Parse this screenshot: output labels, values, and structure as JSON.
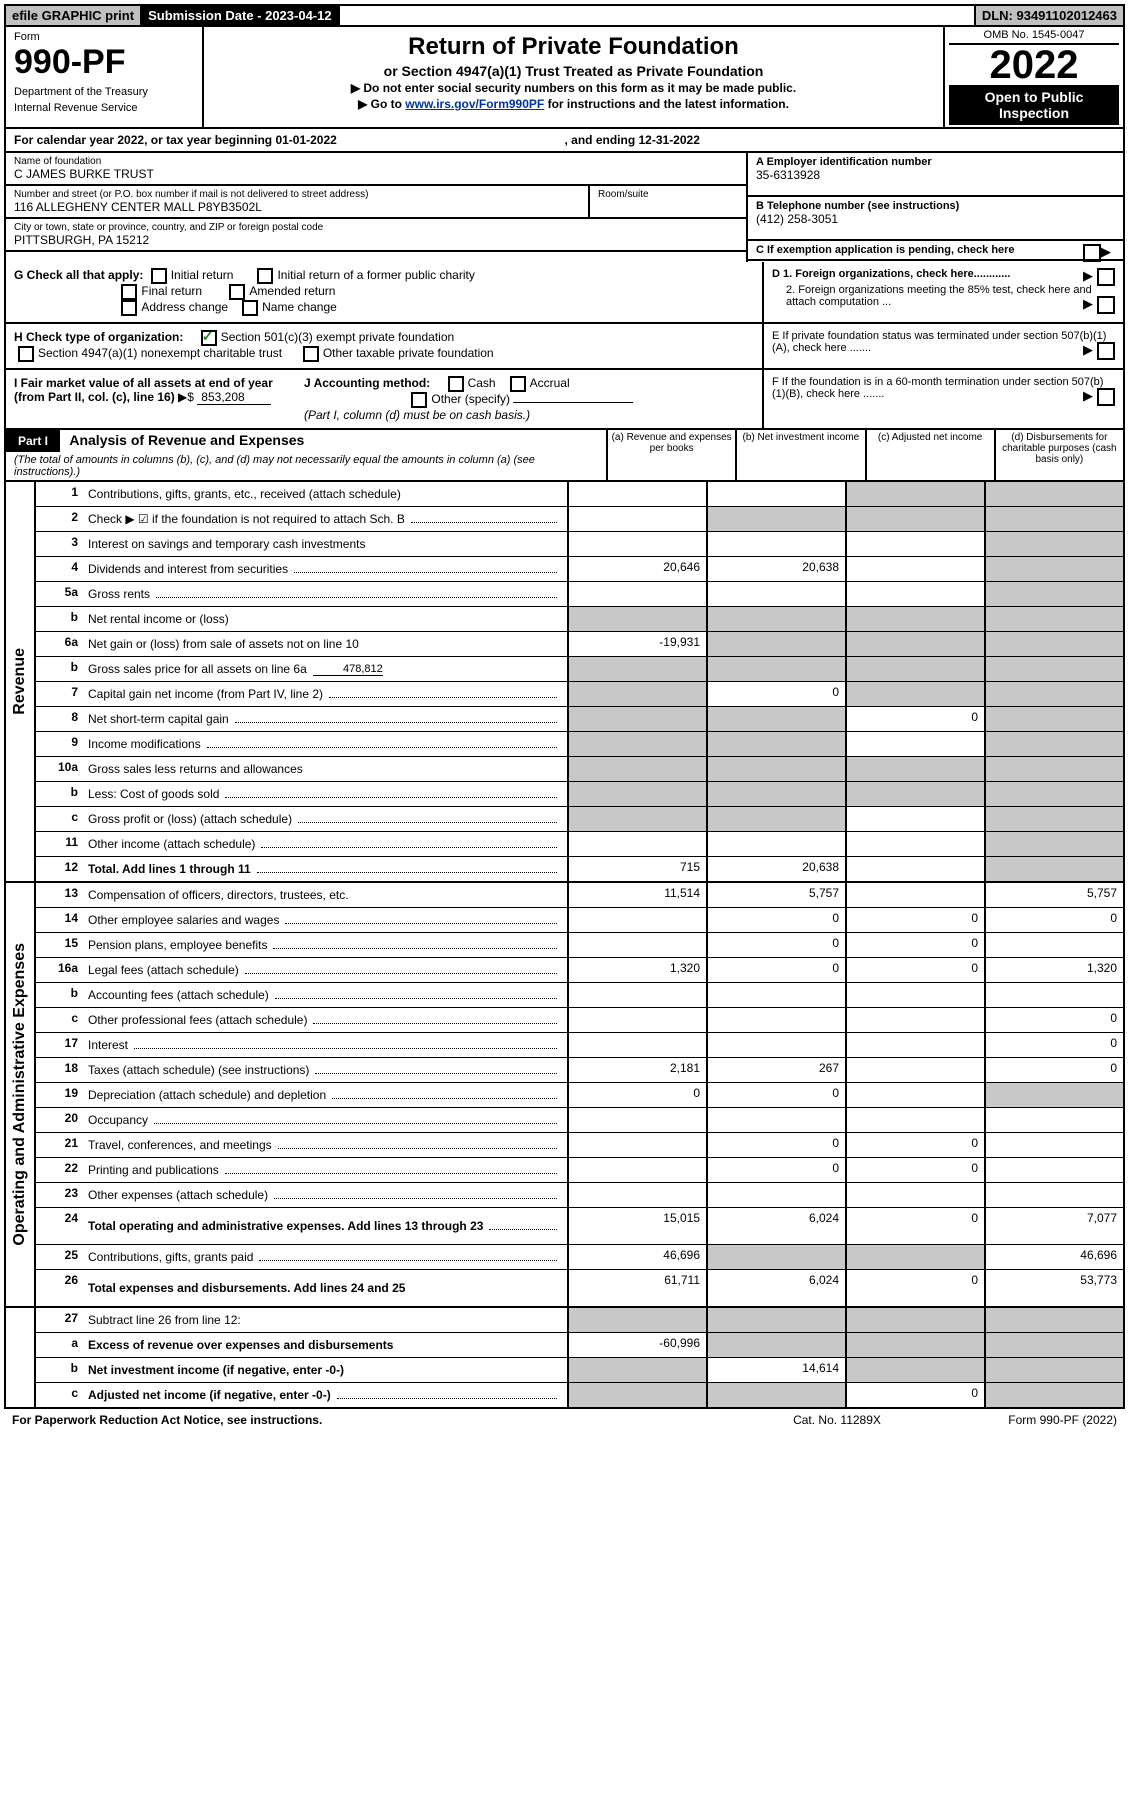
{
  "topbar": {
    "efile": "efile GRAPHIC print",
    "submission_label": "Submission Date - 2023-04-12",
    "dln": "DLN: 93491102012463"
  },
  "header": {
    "form_label": "Form",
    "form_number": "990-PF",
    "dept": "Department of the Treasury",
    "irs": "Internal Revenue Service",
    "title": "Return of Private Foundation",
    "subtitle": "or Section 4947(a)(1) Trust Treated as Private Foundation",
    "instr1": "▶ Do not enter social security numbers on this form as it may be made public.",
    "instr2_prefix": "▶ Go to ",
    "instr2_link": "www.irs.gov/Form990PF",
    "instr2_suffix": " for instructions and the latest information.",
    "omb": "OMB No. 1545-0047",
    "year": "2022",
    "open": "Open to Public Inspection"
  },
  "calendar": {
    "text": "For calendar year 2022, or tax year beginning 01-01-2022",
    "ending": ", and ending 12-31-2022"
  },
  "foundation": {
    "name_label": "Name of foundation",
    "name": "C JAMES BURKE TRUST",
    "addr_label": "Number and street (or P.O. box number if mail is not delivered to street address)",
    "addr": "116 ALLEGHENY CENTER MALL P8YB3502L",
    "room_label": "Room/suite",
    "city_label": "City or town, state or province, country, and ZIP or foreign postal code",
    "city": "PITTSBURGH, PA  15212"
  },
  "ein": {
    "label": "A Employer identification number",
    "value": "35-6313928"
  },
  "phone": {
    "label": "B Telephone number (see instructions)",
    "value": "(412) 258-3051"
  },
  "boxes": {
    "c": "C If exemption application is pending, check here",
    "d1": "D 1. Foreign organizations, check here............",
    "d2": "2. Foreign organizations meeting the 85% test, check here and attach computation ...",
    "e": "E  If private foundation status was terminated under section 507(b)(1)(A), check here .......",
    "f": "F  If the foundation is in a 60-month termination under section 507(b)(1)(B), check here ......."
  },
  "g": {
    "label": "G Check all that apply:",
    "opts": [
      "Initial return",
      "Initial return of a former public charity",
      "Final return",
      "Amended return",
      "Address change",
      "Name change"
    ]
  },
  "h": {
    "label": "H Check type of organization:",
    "opt1": "Section 501(c)(3) exempt private foundation",
    "opt2": "Section 4947(a)(1) nonexempt charitable trust",
    "opt3": "Other taxable private foundation"
  },
  "i": {
    "label": "I Fair market value of all assets at end of year (from Part II, col. (c), line 16)",
    "arrow": "▶$",
    "value": "853,208"
  },
  "j": {
    "label": "J Accounting method:",
    "opts": [
      "Cash",
      "Accrual",
      "Other (specify)"
    ],
    "note": "(Part I, column (d) must be on cash basis.)"
  },
  "part1": {
    "tag": "Part I",
    "title": "Analysis of Revenue and Expenses",
    "note": "(The total of amounts in columns (b), (c), and (d) may not necessarily equal the amounts in column (a) (see instructions).)",
    "cols": {
      "a": "(a)   Revenue and expenses per books",
      "b": "(b)   Net investment income",
      "c": "(c)   Adjusted net income",
      "d": "(d)   Disbursements for charitable purposes (cash basis only)"
    }
  },
  "side_labels": {
    "revenue": "Revenue",
    "operating": "Operating and Administrative Expenses"
  },
  "lines": [
    {
      "n": "1",
      "d": "Contributions, gifts, grants, etc., received (attach schedule)",
      "a": "",
      "b": "",
      "c": "sh",
      "dd": "sh"
    },
    {
      "n": "2",
      "d": "Check ▶ ☑ if the foundation is not required to attach Sch. B",
      "dots": true,
      "a": "",
      "b": "sh",
      "c": "sh",
      "dd": "sh"
    },
    {
      "n": "3",
      "d": "Interest on savings and temporary cash investments",
      "a": "",
      "b": "",
      "c": "",
      "dd": "sh"
    },
    {
      "n": "4",
      "d": "Dividends and interest from securities",
      "dots": true,
      "a": "20,646",
      "b": "20,638",
      "c": "",
      "dd": "sh"
    },
    {
      "n": "5a",
      "d": "Gross rents",
      "dots": true,
      "a": "",
      "b": "",
      "c": "",
      "dd": "sh"
    },
    {
      "n": "b",
      "d": "Net rental income or (loss)",
      "a": "sh",
      "b": "sh",
      "c": "sh",
      "dd": "sh"
    },
    {
      "n": "6a",
      "d": "Net gain or (loss) from sale of assets not on line 10",
      "a": "-19,931",
      "b": "sh",
      "c": "sh",
      "dd": "sh"
    },
    {
      "n": "b",
      "d": "Gross sales price for all assets on line 6a",
      "inline": "478,812",
      "a": "sh",
      "b": "sh",
      "c": "sh",
      "dd": "sh"
    },
    {
      "n": "7",
      "d": "Capital gain net income (from Part IV, line 2)",
      "dots": true,
      "a": "sh",
      "b": "0",
      "c": "sh",
      "dd": "sh"
    },
    {
      "n": "8",
      "d": "Net short-term capital gain",
      "dots": true,
      "a": "sh",
      "b": "sh",
      "c": "0",
      "dd": "sh"
    },
    {
      "n": "9",
      "d": "Income modifications",
      "dots": true,
      "a": "sh",
      "b": "sh",
      "c": "",
      "dd": "sh"
    },
    {
      "n": "10a",
      "d": "Gross sales less returns and allowances",
      "a": "sh",
      "b": "sh",
      "c": "sh",
      "dd": "sh"
    },
    {
      "n": "b",
      "d": "Less: Cost of goods sold",
      "dots": true,
      "a": "sh",
      "b": "sh",
      "c": "sh",
      "dd": "sh"
    },
    {
      "n": "c",
      "d": "Gross profit or (loss) (attach schedule)",
      "dots": true,
      "a": "sh",
      "b": "sh",
      "c": "",
      "dd": "sh"
    },
    {
      "n": "11",
      "d": "Other income (attach schedule)",
      "dots": true,
      "a": "",
      "b": "",
      "c": "",
      "dd": "sh"
    },
    {
      "n": "12",
      "d": "Total. Add lines 1 through 11",
      "dots": true,
      "bold": true,
      "a": "715",
      "b": "20,638",
      "c": "",
      "dd": "sh"
    }
  ],
  "op_lines": [
    {
      "n": "13",
      "d": "Compensation of officers, directors, trustees, etc.",
      "a": "11,514",
      "b": "5,757",
      "c": "",
      "dd": "5,757"
    },
    {
      "n": "14",
      "d": "Other employee salaries and wages",
      "dots": true,
      "a": "",
      "b": "0",
      "c": "0",
      "dd": "0"
    },
    {
      "n": "15",
      "d": "Pension plans, employee benefits",
      "dots": true,
      "a": "",
      "b": "0",
      "c": "0",
      "dd": ""
    },
    {
      "n": "16a",
      "d": "Legal fees (attach schedule)",
      "dots": true,
      "a": "1,320",
      "b": "0",
      "c": "0",
      "dd": "1,320"
    },
    {
      "n": "b",
      "d": "Accounting fees (attach schedule)",
      "dots": true,
      "a": "",
      "b": "",
      "c": "",
      "dd": ""
    },
    {
      "n": "c",
      "d": "Other professional fees (attach schedule)",
      "dots": true,
      "a": "",
      "b": "",
      "c": "",
      "dd": "0"
    },
    {
      "n": "17",
      "d": "Interest",
      "dots": true,
      "a": "",
      "b": "",
      "c": "",
      "dd": "0"
    },
    {
      "n": "18",
      "d": "Taxes (attach schedule) (see instructions)",
      "dots": true,
      "a": "2,181",
      "b": "267",
      "c": "",
      "dd": "0"
    },
    {
      "n": "19",
      "d": "Depreciation (attach schedule) and depletion",
      "dots": true,
      "a": "0",
      "b": "0",
      "c": "",
      "dd": "sh"
    },
    {
      "n": "20",
      "d": "Occupancy",
      "dots": true,
      "a": "",
      "b": "",
      "c": "",
      "dd": ""
    },
    {
      "n": "21",
      "d": "Travel, conferences, and meetings",
      "dots": true,
      "a": "",
      "b": "0",
      "c": "0",
      "dd": ""
    },
    {
      "n": "22",
      "d": "Printing and publications",
      "dots": true,
      "a": "",
      "b": "0",
      "c": "0",
      "dd": ""
    },
    {
      "n": "23",
      "d": "Other expenses (attach schedule)",
      "dots": true,
      "a": "",
      "b": "",
      "c": "",
      "dd": ""
    },
    {
      "n": "24",
      "d": "Total operating and administrative expenses. Add lines 13 through 23",
      "dots": true,
      "bold": true,
      "tall": true,
      "a": "15,015",
      "b": "6,024",
      "c": "0",
      "dd": "7,077"
    },
    {
      "n": "25",
      "d": "Contributions, gifts, grants paid",
      "dots": true,
      "a": "46,696",
      "b": "sh",
      "c": "sh",
      "dd": "46,696"
    },
    {
      "n": "26",
      "d": "Total expenses and disbursements. Add lines 24 and 25",
      "bold": true,
      "tall": true,
      "a": "61,711",
      "b": "6,024",
      "c": "0",
      "dd": "53,773"
    }
  ],
  "bottom_lines": [
    {
      "n": "27",
      "d": "Subtract line 26 from line 12:",
      "a": "sh",
      "b": "sh",
      "c": "sh",
      "dd": "sh"
    },
    {
      "n": "a",
      "d": "Excess of revenue over expenses and disbursements",
      "bold": true,
      "a": "-60,996",
      "b": "sh",
      "c": "sh",
      "dd": "sh"
    },
    {
      "n": "b",
      "d": "Net investment income (if negative, enter -0-)",
      "bold": true,
      "a": "sh",
      "b": "14,614",
      "c": "sh",
      "dd": "sh"
    },
    {
      "n": "c",
      "d": "Adjusted net income (if negative, enter -0-)",
      "dots": true,
      "bold": true,
      "a": "sh",
      "b": "sh",
      "c": "0",
      "dd": "sh"
    }
  ],
  "footer": {
    "left": "For Paperwork Reduction Act Notice, see instructions.",
    "mid": "Cat. No. 11289X",
    "right": "Form 990-PF (2022)"
  }
}
